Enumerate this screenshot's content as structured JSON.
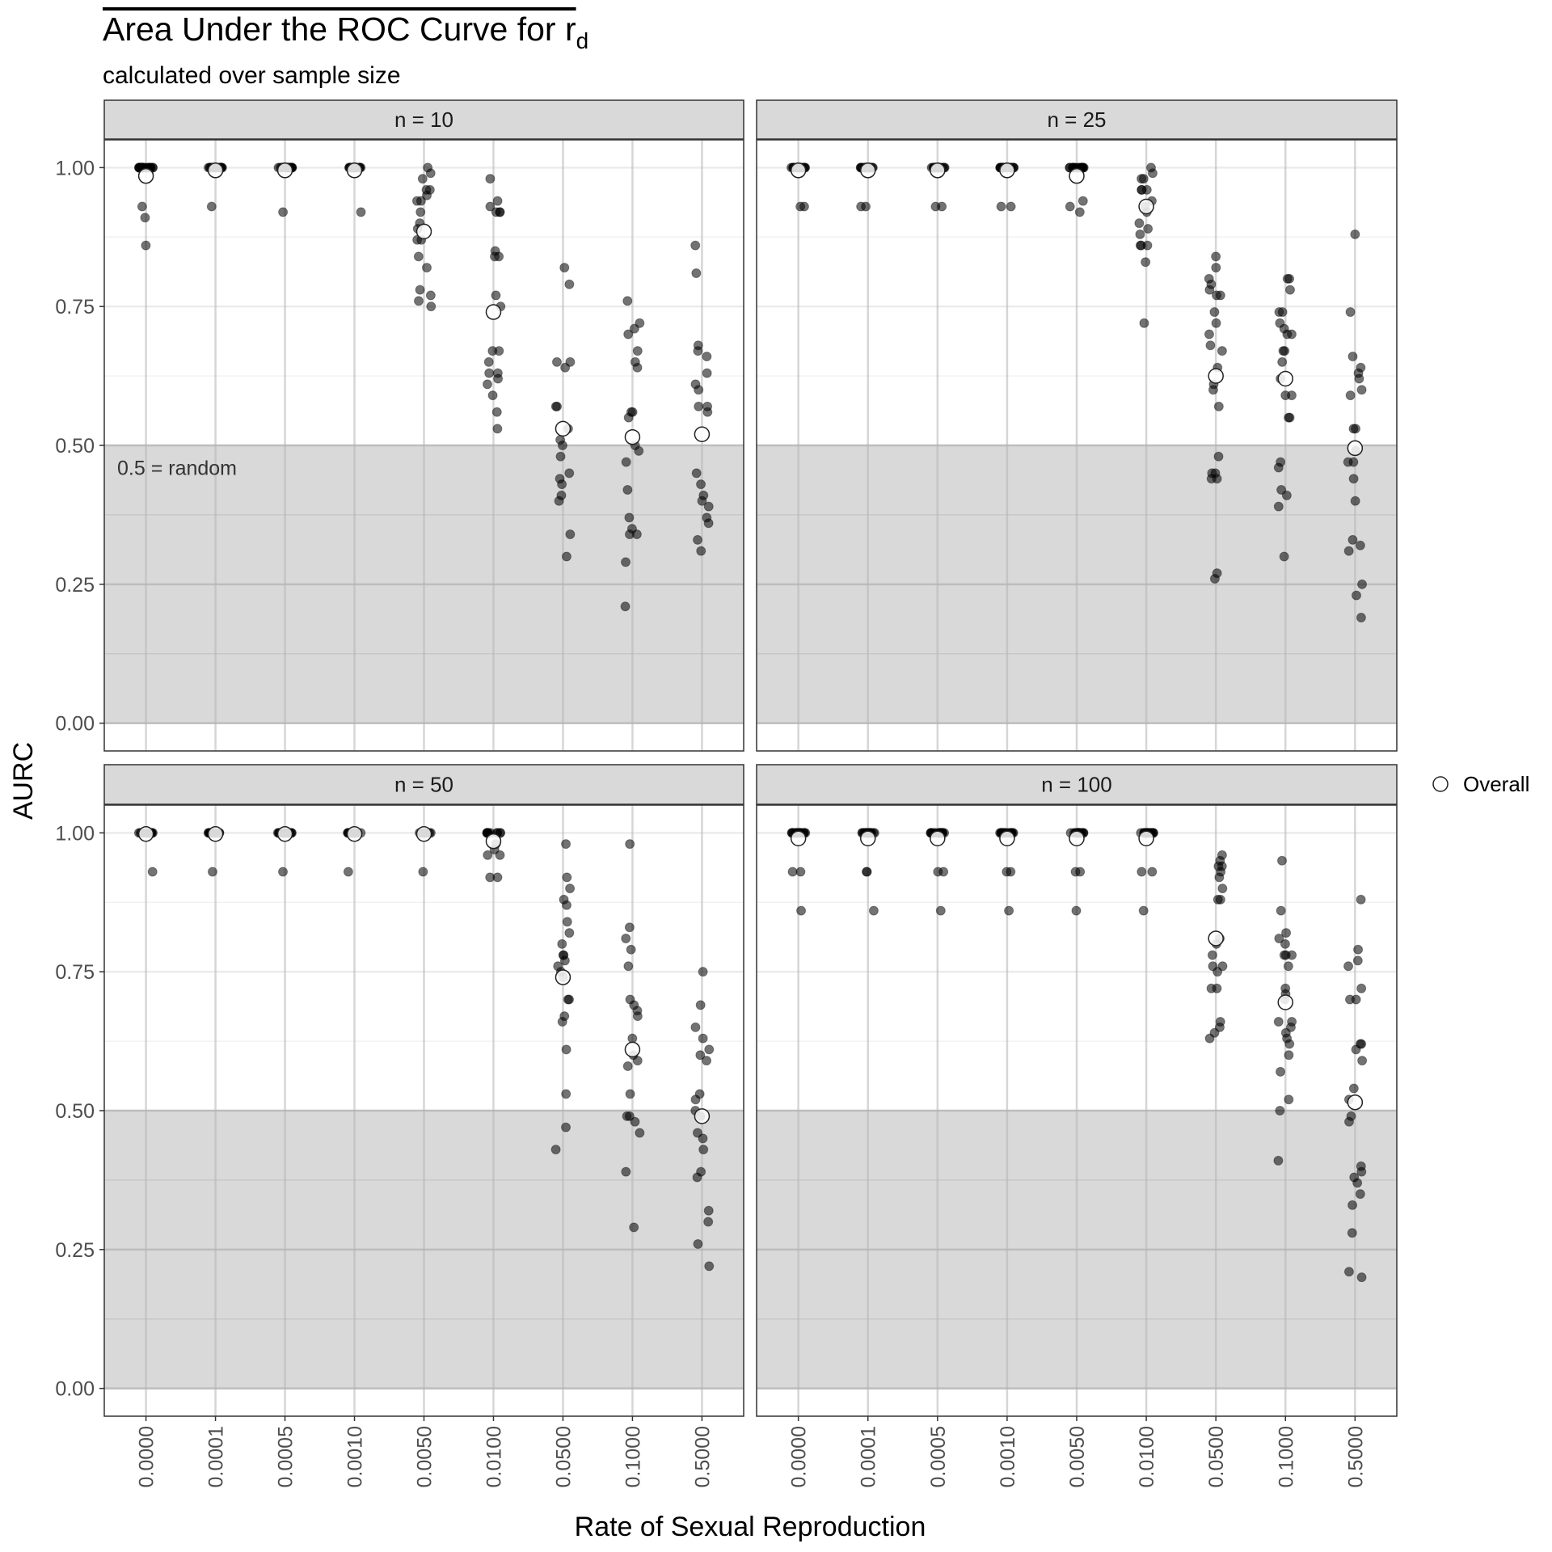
{
  "chart_data": {
    "type": "scatter",
    "title": "Area Under the ROC Curve for r",
    "title_subscript": "d",
    "subtitle": "calculated over sample size",
    "xlabel": "Rate of Sexual Reproduction",
    "ylabel": "AURC",
    "categories": [
      "0.0000",
      "0.0001",
      "0.0005",
      "0.0010",
      "0.0050",
      "0.0100",
      "0.0500",
      "0.1000",
      "0.5000"
    ],
    "y_ticks": [
      "0.00",
      "0.25",
      "0.50",
      "0.75",
      "1.00"
    ],
    "ylim": [
      -0.05,
      1.05
    ],
    "grid": true,
    "shaded_region": {
      "ymin": 0,
      "ymax": 0.5,
      "label": "0.5 = random"
    },
    "legend": {
      "position": "right",
      "entries": [
        {
          "label": "Overall",
          "marker": "open-circle"
        }
      ]
    },
    "panels": [
      {
        "strip": "n = 10",
        "show_random_label": true,
        "overall": [
          0.985,
          0.995,
          0.995,
          0.995,
          0.885,
          0.74,
          0.53,
          0.515,
          0.52
        ],
        "points": [
          [
            0.91,
            0.86,
            0.93,
            1,
            1,
            1,
            1,
            1,
            1,
            1,
            1,
            1,
            1,
            1,
            1,
            1,
            1,
            1,
            1,
            1,
            1,
            1
          ],
          [
            0.93,
            1,
            1,
            1,
            1,
            1,
            1,
            1,
            1,
            1,
            1,
            1,
            1,
            1,
            1,
            1,
            1,
            1
          ],
          [
            0.92,
            1,
            1,
            1,
            1,
            1,
            1,
            1,
            1,
            1,
            1,
            1,
            1,
            1,
            1,
            1,
            1,
            1
          ],
          [
            0.92,
            1,
            1,
            1,
            1,
            1,
            1,
            1,
            1,
            1,
            1,
            1,
            1,
            1,
            1,
            1,
            1,
            1
          ],
          [
            0.99,
            0.98,
            0.96,
            0.96,
            0.94,
            0.94,
            0.92,
            0.9,
            0.89,
            0.87,
            0.87,
            0.84,
            0.82,
            0.78,
            0.77,
            0.76,
            0.75,
            1,
            0.95
          ],
          [
            0.98,
            0.94,
            0.93,
            0.92,
            0.92,
            0.92,
            0.85,
            0.84,
            0.84,
            0.77,
            0.75,
            0.67,
            0.67,
            0.65,
            0.63,
            0.63,
            0.62,
            0.61,
            0.59,
            0.56,
            0.53
          ],
          [
            0.82,
            0.79,
            0.65,
            0.65,
            0.64,
            0.57,
            0.57,
            0.53,
            0.51,
            0.5,
            0.48,
            0.45,
            0.44,
            0.43,
            0.41,
            0.4,
            0.34,
            0.3
          ],
          [
            0.76,
            0.72,
            0.71,
            0.7,
            0.67,
            0.65,
            0.64,
            0.56,
            0.56,
            0.55,
            0.5,
            0.49,
            0.47,
            0.42,
            0.37,
            0.35,
            0.34,
            0.34,
            0.29,
            0.21
          ],
          [
            0.86,
            0.81,
            0.68,
            0.67,
            0.66,
            0.63,
            0.61,
            0.6,
            0.57,
            0.57,
            0.56,
            0.45,
            0.43,
            0.41,
            0.4,
            0.39,
            0.37,
            0.36,
            0.33,
            0.31
          ]
        ]
      },
      {
        "strip": "n = 25",
        "show_random_label": false,
        "overall": [
          0.995,
          0.995,
          0.995,
          0.995,
          0.985,
          0.93,
          0.625,
          0.62,
          0.495
        ],
        "points": [
          [
            0.93,
            0.93,
            1,
            1,
            1,
            1,
            1,
            1,
            1,
            1,
            1,
            1,
            1,
            1,
            1,
            1,
            1,
            1,
            1,
            1
          ],
          [
            0.93,
            0.93,
            1,
            1,
            1,
            1,
            1,
            1,
            1,
            1,
            1,
            1,
            1,
            1,
            1,
            1,
            1,
            1,
            1
          ],
          [
            0.93,
            0.93,
            1,
            1,
            1,
            1,
            1,
            1,
            1,
            1,
            1,
            1,
            1,
            1,
            1,
            1,
            1,
            1,
            1
          ],
          [
            0.93,
            0.93,
            1,
            1,
            1,
            1,
            1,
            1,
            1,
            1,
            1,
            1,
            1,
            1,
            1,
            1,
            1,
            1,
            1
          ],
          [
            0.94,
            0.93,
            0.92,
            1,
            1,
            1,
            1,
            1,
            1,
            1,
            1,
            1,
            1,
            1,
            1,
            1,
            1,
            1
          ],
          [
            1,
            0.99,
            0.98,
            0.98,
            0.96,
            0.96,
            0.96,
            0.94,
            0.93,
            0.92,
            0.9,
            0.89,
            0.88,
            0.86,
            0.86,
            0.86,
            0.83,
            0.72
          ],
          [
            0.84,
            0.82,
            0.8,
            0.79,
            0.78,
            0.77,
            0.77,
            0.74,
            0.72,
            0.7,
            0.68,
            0.67,
            0.64,
            0.61,
            0.6,
            0.57,
            0.48,
            0.45,
            0.45,
            0.44,
            0.44,
            0.27,
            0.26
          ],
          [
            0.8,
            0.8,
            0.78,
            0.74,
            0.74,
            0.72,
            0.71,
            0.7,
            0.7,
            0.67,
            0.67,
            0.65,
            0.62,
            0.59,
            0.59,
            0.55,
            0.55,
            0.47,
            0.46,
            0.42,
            0.41,
            0.39,
            0.3
          ],
          [
            0.88,
            0.74,
            0.66,
            0.64,
            0.63,
            0.62,
            0.6,
            0.59,
            0.53,
            0.53,
            0.49,
            0.47,
            0.47,
            0.44,
            0.4,
            0.33,
            0.32,
            0.31,
            0.25,
            0.23,
            0.19
          ]
        ]
      },
      {
        "strip": "n = 50",
        "show_random_label": false,
        "overall": [
          0.998,
          0.998,
          0.998,
          0.998,
          0.998,
          0.985,
          0.74,
          0.61,
          0.49
        ],
        "points": [
          [
            0.93,
            1,
            1,
            1,
            1,
            1,
            1,
            1,
            1,
            1,
            1,
            1,
            1,
            1,
            1,
            1,
            1,
            1
          ],
          [
            0.93,
            1,
            1,
            1,
            1,
            1,
            1,
            1,
            1,
            1,
            1,
            1,
            1,
            1,
            1,
            1,
            1,
            1
          ],
          [
            0.93,
            1,
            1,
            1,
            1,
            1,
            1,
            1,
            1,
            1,
            1,
            1,
            1,
            1,
            1,
            1,
            1,
            1
          ],
          [
            0.93,
            1,
            1,
            1,
            1,
            1,
            1,
            1,
            1,
            1,
            1,
            1,
            1,
            1,
            1,
            1,
            1,
            1
          ],
          [
            0.93,
            1,
            1,
            1,
            1,
            1,
            1,
            1,
            1,
            1,
            1,
            1,
            1,
            1,
            1,
            1,
            1,
            1
          ],
          [
            1,
            1,
            1,
            1,
            1,
            1,
            1,
            1,
            1,
            1,
            0.98,
            0.97,
            0.96,
            0.96,
            0.92,
            0.92
          ],
          [
            0.98,
            0.92,
            0.9,
            0.88,
            0.87,
            0.84,
            0.82,
            0.8,
            0.78,
            0.78,
            0.77,
            0.76,
            0.75,
            0.74,
            0.7,
            0.7,
            0.67,
            0.66,
            0.61,
            0.53,
            0.47,
            0.43
          ],
          [
            0.98,
            0.83,
            0.81,
            0.79,
            0.76,
            0.7,
            0.69,
            0.68,
            0.67,
            0.63,
            0.6,
            0.59,
            0.58,
            0.53,
            0.49,
            0.49,
            0.48,
            0.46,
            0.39,
            0.29
          ],
          [
            0.75,
            0.69,
            0.65,
            0.63,
            0.61,
            0.6,
            0.59,
            0.53,
            0.52,
            0.5,
            0.49,
            0.46,
            0.45,
            0.43,
            0.39,
            0.38,
            0.32,
            0.3,
            0.26,
            0.22
          ]
        ]
      },
      {
        "strip": "n = 100",
        "show_random_label": false,
        "overall": [
          0.99,
          0.99,
          0.99,
          0.99,
          0.99,
          0.99,
          0.81,
          0.695,
          0.515
        ],
        "points": [
          [
            0.93,
            0.93,
            0.86,
            1,
            1,
            1,
            1,
            1,
            1,
            1,
            1,
            1,
            1,
            1,
            1,
            1,
            1,
            1,
            1,
            1,
            1
          ],
          [
            0.93,
            0.93,
            0.86,
            1,
            1,
            1,
            1,
            1,
            1,
            1,
            1,
            1,
            1,
            1,
            1,
            1,
            1,
            1,
            1,
            1
          ],
          [
            0.93,
            0.93,
            0.86,
            1,
            1,
            1,
            1,
            1,
            1,
            1,
            1,
            1,
            1,
            1,
            1,
            1,
            1,
            1,
            1,
            1
          ],
          [
            0.93,
            0.93,
            0.86,
            1,
            1,
            1,
            1,
            1,
            1,
            1,
            1,
            1,
            1,
            1,
            1,
            1,
            1,
            1,
            1,
            1
          ],
          [
            0.93,
            0.93,
            0.86,
            1,
            1,
            1,
            1,
            1,
            1,
            1,
            1,
            1,
            1,
            1,
            1,
            1,
            1,
            1,
            1,
            1
          ],
          [
            0.93,
            0.93,
            0.86,
            1,
            1,
            1,
            1,
            1,
            1,
            1,
            1,
            1,
            1,
            1,
            1,
            1,
            1,
            1,
            1
          ],
          [
            0.96,
            0.95,
            0.94,
            0.94,
            0.93,
            0.92,
            0.9,
            0.88,
            0.88,
            0.81,
            0.8,
            0.78,
            0.76,
            0.76,
            0.75,
            0.72,
            0.72,
            0.66,
            0.65,
            0.64,
            0.63
          ],
          [
            0.95,
            0.86,
            0.82,
            0.81,
            0.8,
            0.78,
            0.78,
            0.78,
            0.76,
            0.72,
            0.71,
            0.7,
            0.66,
            0.66,
            0.65,
            0.64,
            0.63,
            0.62,
            0.6,
            0.57,
            0.52,
            0.5,
            0.41
          ],
          [
            0.88,
            0.79,
            0.77,
            0.76,
            0.72,
            0.7,
            0.7,
            0.62,
            0.62,
            0.61,
            0.59,
            0.54,
            0.52,
            0.49,
            0.48,
            0.4,
            0.39,
            0.38,
            0.37,
            0.35,
            0.33,
            0.28,
            0.21,
            0.2
          ]
        ]
      }
    ]
  }
}
